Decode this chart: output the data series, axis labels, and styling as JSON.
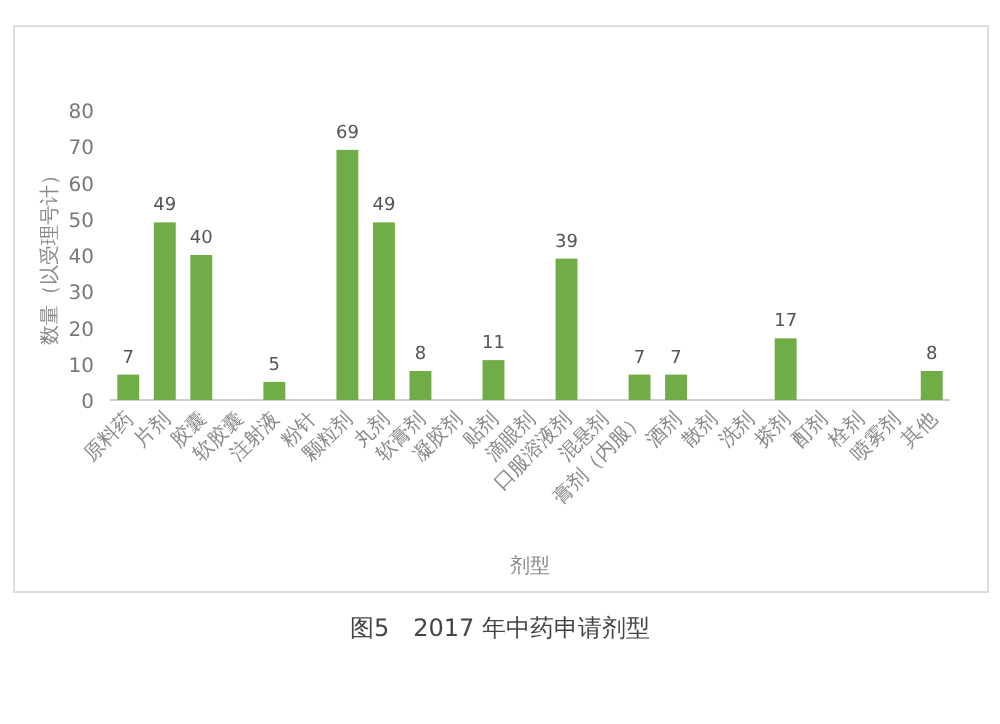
{
  "chart_data": {
    "type": "bar",
    "ylabel": "数量（以受理号计）",
    "xlabel": "剂型",
    "categories": [
      "原料药",
      "片剂",
      "胶囊",
      "软胶囊",
      "注射液",
      "粉针",
      "颗粒剂",
      "丸剂",
      "软膏剂",
      "凝胶剂",
      "贴剂",
      "滴眼剂",
      "口服溶液剂",
      "混悬剂",
      "膏剂（内服）",
      "酒剂",
      "散剂",
      "洗剂",
      "搽剂",
      "酊剂",
      "栓剂",
      "喷雾剂",
      "其他"
    ],
    "values": [
      7,
      49,
      40,
      null,
      5,
      null,
      69,
      49,
      8,
      null,
      11,
      null,
      39,
      null,
      7,
      7,
      null,
      null,
      17,
      null,
      null,
      null,
      8
    ],
    "color": "#70ad47",
    "data_labels": true,
    "ylim": [
      0,
      80
    ],
    "yticks": [
      0,
      10,
      20,
      30,
      40,
      50,
      60,
      70,
      80
    ],
    "grid": false,
    "annotations": [
      "图5　2017 年中药申请剂型"
    ]
  }
}
